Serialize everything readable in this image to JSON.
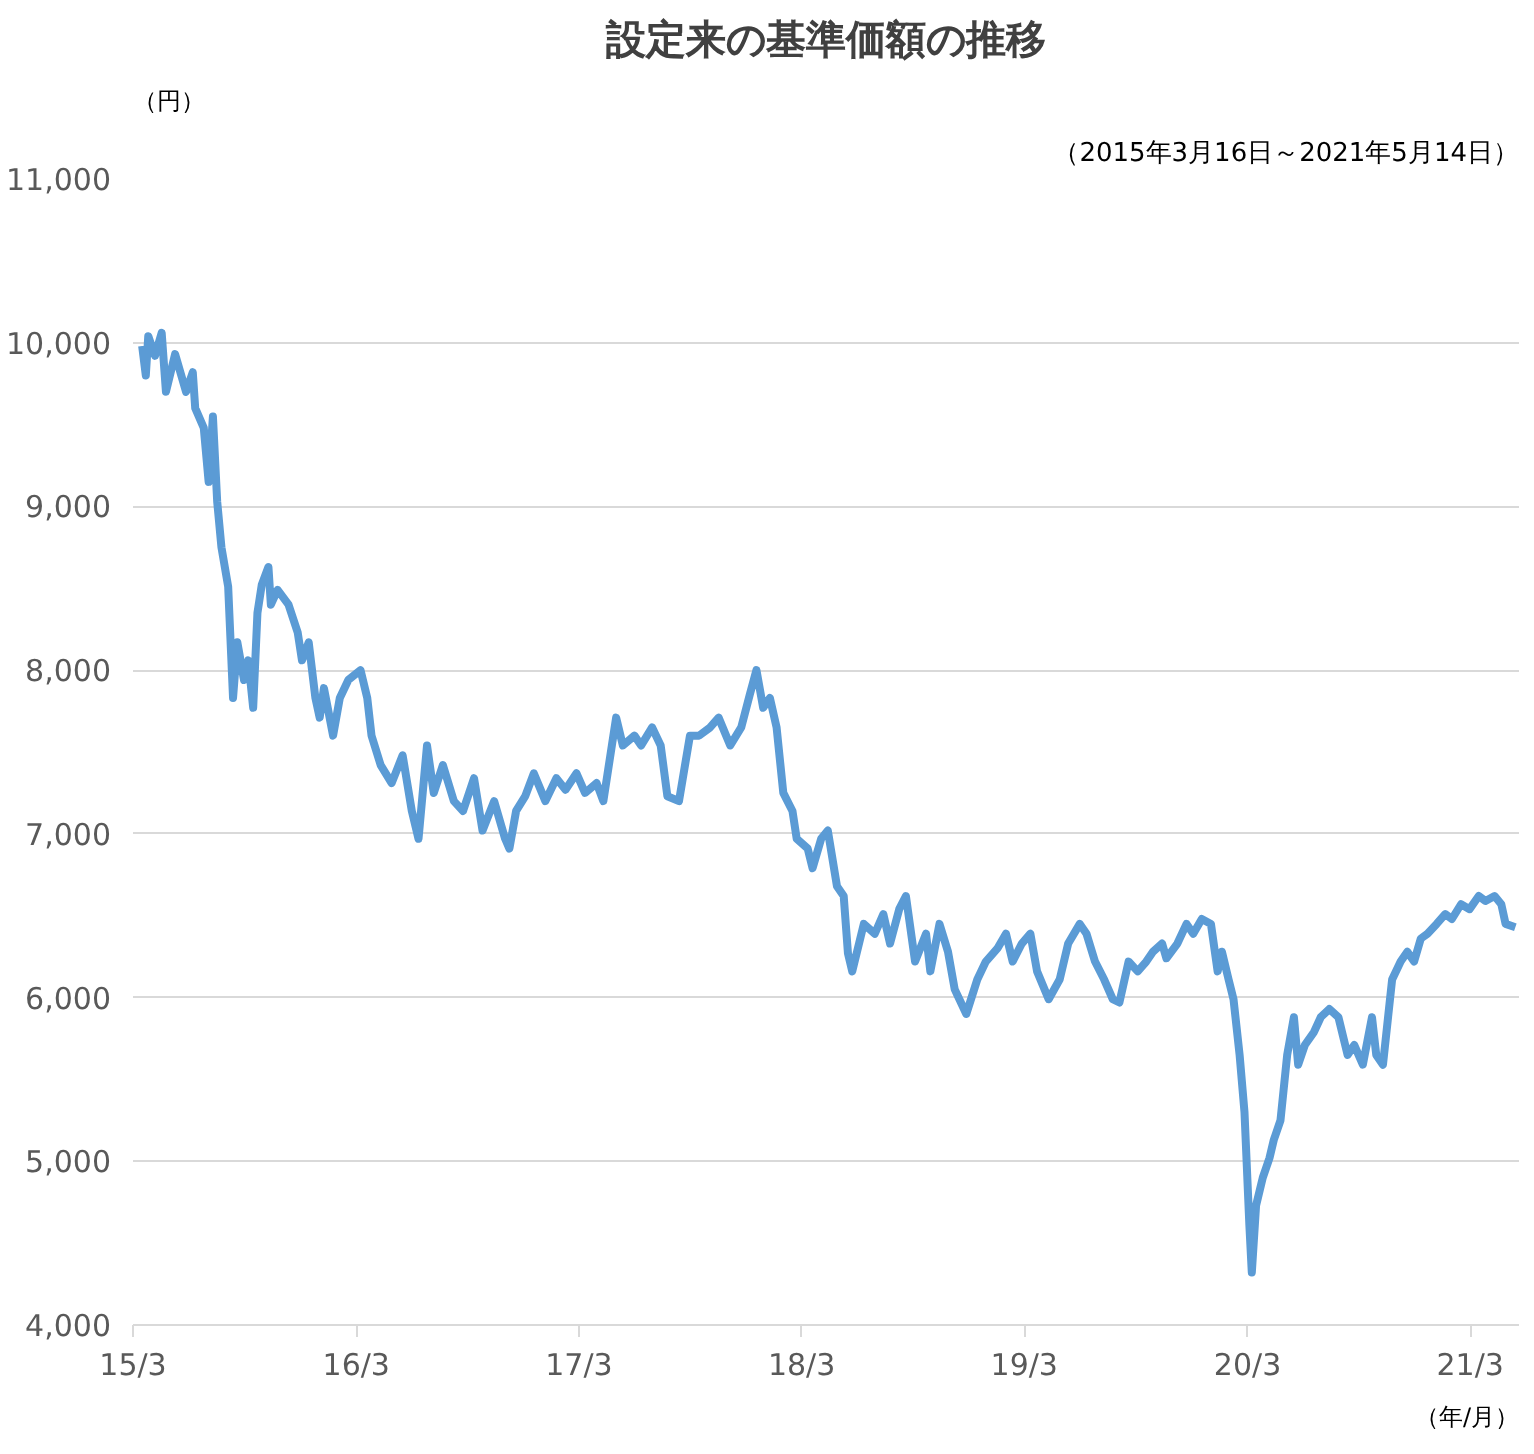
{
  "chart_data": {
    "type": "line",
    "title": "設定来の基準価額の推移",
    "subtitle": "（2015年3月16日～2021年5月14日）",
    "ylabel": "（円）",
    "xlabel": "（年/月）",
    "x": [
      "2015-03-16",
      "2015-03-22",
      "2015-03-26",
      "2015-04-06",
      "2015-04-17",
      "2015-04-24",
      "2015-05-09",
      "2015-05-27",
      "2015-06-07",
      "2015-06-11",
      "2015-06-25",
      "2015-07-03",
      "2015-07-10",
      "2015-07-17",
      "2015-07-24",
      "2015-08-04",
      "2015-08-12",
      "2015-08-19",
      "2015-08-30",
      "2015-09-06",
      "2015-09-14",
      "2015-09-21",
      "2015-09-28",
      "2015-10-09",
      "2015-10-13",
      "2015-10-24",
      "2015-11-11",
      "2015-11-26",
      "2015-12-03",
      "2015-12-14",
      "2015-12-25",
      "2016-01-01",
      "2016-01-08",
      "2016-01-23",
      "2016-02-03",
      "2016-02-17",
      "2016-03-08",
      "2016-03-19",
      "2016-03-26",
      "2016-04-10",
      "2016-04-28",
      "2016-05-16",
      "2016-05-31",
      "2016-06-11",
      "2016-06-25",
      "2016-07-06",
      "2016-07-21",
      "2016-08-08",
      "2016-08-23",
      "2016-09-10",
      "2016-09-24",
      "2016-10-13",
      "2016-10-31",
      "2016-11-07",
      "2016-11-18",
      "2016-12-03",
      "2016-12-17",
      "2017-01-05",
      "2017-01-23",
      "2017-02-07",
      "2017-02-25",
      "2017-03-11",
      "2017-03-30",
      "2017-04-10",
      "2017-04-24",
      "2017-05-01",
      "2017-05-12",
      "2017-05-31",
      "2017-06-11",
      "2017-06-29",
      "2017-07-13",
      "2017-07-24",
      "2017-08-12",
      "2017-08-30",
      "2017-09-14",
      "2017-10-02",
      "2017-10-16",
      "2017-11-04",
      "2017-11-22",
      "2017-12-06",
      "2017-12-17",
      "2017-12-28",
      "2018-01-08",
      "2018-01-19",
      "2018-01-30",
      "2018-02-14",
      "2018-02-21",
      "2018-03-11",
      "2018-03-19",
      "2018-04-02",
      "2018-04-13",
      "2018-04-28",
      "2018-05-09",
      "2018-05-16",
      "2018-05-23",
      "2018-06-11",
      "2018-06-29",
      "2018-07-13",
      "2018-07-24",
      "2018-08-08",
      "2018-08-19",
      "2018-09-03",
      "2018-09-21",
      "2018-09-28",
      "2018-10-13",
      "2018-10-27",
      "2018-11-07",
      "2018-11-26",
      "2018-12-14",
      "2018-12-28",
      "2019-01-16",
      "2019-01-30",
      "2019-02-10",
      "2019-02-25",
      "2019-03-11",
      "2019-03-22",
      "2019-04-10",
      "2019-04-28",
      "2019-05-12",
      "2019-05-31",
      "2019-06-11",
      "2019-06-25",
      "2019-07-10",
      "2019-07-24",
      "2019-08-04",
      "2019-08-19",
      "2019-09-03",
      "2019-09-17",
      "2019-09-28",
      "2019-10-13",
      "2019-10-20",
      "2019-11-07",
      "2019-11-22",
      "2019-12-03",
      "2019-12-17",
      "2020-01-01",
      "2020-01-12",
      "2020-01-19",
      "2020-01-30",
      "2020-02-07",
      "2020-02-17",
      "2020-02-25",
      "2020-03-04",
      "2020-03-08",
      "2020-03-15",
      "2020-03-26",
      "2020-04-06",
      "2020-04-13",
      "2020-04-24",
      "2020-05-05",
      "2020-05-16",
      "2020-05-23",
      "2020-06-03",
      "2020-06-18",
      "2020-06-29",
      "2020-07-13",
      "2020-07-28",
      "2020-08-12",
      "2020-08-23",
      "2020-09-06",
      "2020-09-21",
      "2020-09-28",
      "2020-10-09",
      "2020-10-24",
      "2020-11-07",
      "2020-11-18",
      "2020-11-29",
      "2020-12-10",
      "2020-12-21",
      "2021-01-05",
      "2021-01-19",
      "2021-01-30",
      "2021-02-14",
      "2021-02-28",
      "2021-03-15",
      "2021-03-26",
      "2021-04-10",
      "2021-04-21",
      "2021-04-28",
      "2021-05-14"
    ],
    "series": [
      {
        "color": "#5b9bd5",
        "values": [
          9980,
          9800,
          10040,
          9920,
          10060,
          9700,
          9930,
          9700,
          9820,
          9600,
          9480,
          9150,
          9550,
          9030,
          8750,
          8510,
          7830,
          8170,
          7940,
          8060,
          7770,
          8350,
          8520,
          8630,
          8400,
          8490,
          8400,
          8230,
          8060,
          8170,
          7830,
          7710,
          7890,
          7600,
          7830,
          7940,
          8000,
          7830,
          7600,
          7420,
          7310,
          7480,
          7140,
          6970,
          7540,
          7250,
          7420,
          7200,
          7140,
          7340,
          7020,
          7200,
          6970,
          6910,
          7140,
          7230,
          7370,
          7200,
          7340,
          7270,
          7370,
          7250,
          7310,
          7200,
          7540,
          7710,
          7540,
          7600,
          7540,
          7650,
          7540,
          7230,
          7200,
          7600,
          7600,
          7650,
          7710,
          7540,
          7650,
          7850,
          8000,
          7770,
          7830,
          7650,
          7250,
          7140,
          6970,
          6910,
          6790,
          6970,
          7020,
          6680,
          6620,
          6270,
          6160,
          6450,
          6390,
          6510,
          6330,
          6540,
          6620,
          6220,
          6390,
          6160,
          6450,
          6280,
          6050,
          5900,
          6110,
          6220,
          6300,
          6390,
          6220,
          6330,
          6390,
          6160,
          5990,
          6110,
          6330,
          6450,
          6390,
          6220,
          6110,
          5990,
          5970,
          6220,
          6160,
          6220,
          6280,
          6330,
          6240,
          6330,
          6450,
          6390,
          6480,
          6450,
          6160,
          6280,
          6110,
          5990,
          5650,
          5300,
          4610,
          4320,
          4730,
          4900,
          5020,
          5130,
          5250,
          5650,
          5880,
          5590,
          5710,
          5790,
          5880,
          5930,
          5880,
          5650,
          5710,
          5590,
          5880,
          5650,
          5590,
          6110,
          6220,
          6280,
          6220,
          6360,
          6390,
          6450,
          6510,
          6480,
          6570,
          6540,
          6620,
          6590,
          6620,
          6570,
          6450,
          6430
        ]
      }
    ],
    "xlim": [
      "2015-03-01",
      "2021-05-20"
    ],
    "xticks": [
      {
        "value": "2015-03",
        "label": "15/3"
      },
      {
        "value": "2016-03",
        "label": "16/3"
      },
      {
        "value": "2017-03",
        "label": "17/3"
      },
      {
        "value": "2018-03",
        "label": "18/3"
      },
      {
        "value": "2019-03",
        "label": "19/3"
      },
      {
        "value": "2020-03",
        "label": "20/3"
      },
      {
        "value": "2021-03",
        "label": "21/3"
      }
    ],
    "ylim": [
      4000,
      11000
    ],
    "yticks": [
      {
        "value": 4000,
        "label": "4,000"
      },
      {
        "value": 5000,
        "label": "5,000"
      },
      {
        "value": 6000,
        "label": "6,000"
      },
      {
        "value": 7000,
        "label": "7,000"
      },
      {
        "value": 8000,
        "label": "8,000"
      },
      {
        "value": 9000,
        "label": "9,000"
      },
      {
        "value": 10000,
        "label": "10,000"
      },
      {
        "value": 11000,
        "label": "11,000"
      }
    ],
    "grid": "y",
    "marker": "none",
    "line_style": "solid"
  }
}
